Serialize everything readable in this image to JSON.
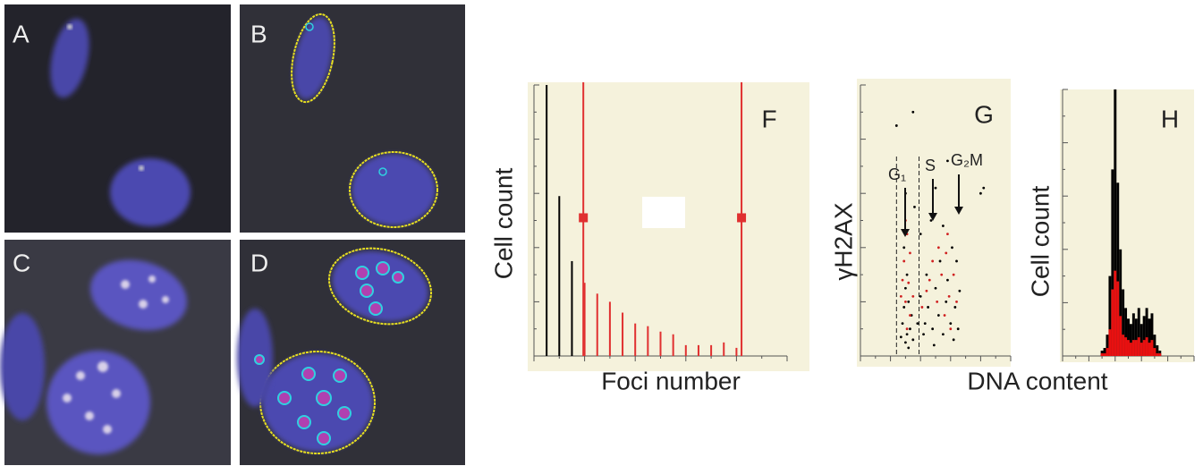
{
  "image_panels": [
    {
      "label": "A"
    },
    {
      "label": "B"
    },
    {
      "label": "C"
    },
    {
      "label": "D"
    }
  ],
  "chart_data": [
    {
      "type": "bar",
      "label": "F",
      "xlabel": "Foci number",
      "ylabel": "Cell count",
      "xlim": [
        0,
        20
      ],
      "ylim": [
        0,
        100
      ],
      "x": [
        1,
        2,
        3,
        4,
        5,
        6,
        7,
        8,
        9,
        10,
        11,
        12,
        13,
        14,
        15,
        16
      ],
      "values": [
        100,
        59,
        35,
        27,
        23,
        20,
        16,
        12,
        11,
        9,
        8,
        4,
        4,
        4,
        5,
        3
      ],
      "colors": [
        "#000000",
        "#000000",
        "#000000",
        "#e03030",
        "#e03030",
        "#e03030",
        "#e03030",
        "#e03030",
        "#e03030",
        "#e03030",
        "#e03030",
        "#e03030",
        "#e03030",
        "#e03030",
        "#e03030",
        "#e03030"
      ],
      "thresholds": [
        3.9,
        16.4
      ],
      "threshold_marker": 51,
      "threshold_color": "#e03030"
    },
    {
      "type": "scatter",
      "label": "G",
      "xlabel": "DNA content",
      "ylabel": "γH2AX",
      "xlim": [
        0,
        100
      ],
      "ylim": [
        0,
        100
      ],
      "gates": [
        24,
        39
      ],
      "annotations": [
        "G₁",
        "S",
        "G₂M"
      ],
      "series": [
        {
          "color": "#000000",
          "x": [
            30,
            31,
            28,
            32,
            29,
            33,
            30,
            27,
            34,
            31,
            29,
            32,
            35,
            38,
            40,
            42,
            45,
            44,
            48,
            50,
            52,
            55,
            53,
            57,
            60,
            58,
            62,
            63,
            61,
            65,
            66,
            40,
            47,
            36,
            55,
            30,
            50,
            24,
            35,
            58,
            82,
            80,
            64,
            43,
            49
          ],
          "y": [
            5,
            8,
            12,
            3,
            18,
            10,
            25,
            7,
            15,
            30,
            40,
            20,
            6,
            12,
            22,
            8,
            18,
            30,
            10,
            25,
            15,
            8,
            35,
            20,
            12,
            28,
            6,
            18,
            40,
            10,
            24,
            45,
            50,
            55,
            48,
            60,
            62,
            85,
            90,
            72,
            62,
            60,
            35,
            12,
            4
          ]
        },
        {
          "color": "#d02020",
          "x": [
            31,
            30,
            32,
            29,
            31,
            33,
            30,
            28,
            35,
            41,
            46,
            51,
            54,
            56,
            59,
            62,
            64,
            52,
            48,
            57,
            60,
            33,
            27,
            44,
            58
          ],
          "y": [
            10,
            20,
            27,
            35,
            45,
            15,
            50,
            28,
            22,
            18,
            28,
            20,
            30,
            15,
            22,
            30,
            20,
            40,
            35,
            38,
            10,
            38,
            22,
            24,
            45
          ]
        }
      ]
    },
    {
      "type": "histogram",
      "label": "H",
      "ylabel": "Cell count",
      "xlim": [
        0,
        100
      ],
      "ylim": [
        0,
        100
      ],
      "x": [
        30,
        32,
        34,
        36,
        38,
        40,
        42,
        44,
        46,
        48,
        50,
        52,
        54,
        56,
        58,
        60,
        62,
        64,
        66,
        68,
        70,
        72,
        74
      ],
      "series": [
        {
          "color": "#000000",
          "values": [
            2,
            3,
            8,
            30,
            70,
            100,
            65,
            40,
            25,
            18,
            14,
            12,
            16,
            14,
            18,
            12,
            15,
            18,
            14,
            16,
            8,
            4,
            2
          ]
        },
        {
          "color": "#e81010",
          "values": [
            1,
            1,
            3,
            10,
            25,
            32,
            28,
            15,
            8,
            7,
            6,
            5,
            6,
            6,
            7,
            5,
            6,
            7,
            5,
            6,
            3,
            1,
            1
          ]
        }
      ]
    }
  ]
}
